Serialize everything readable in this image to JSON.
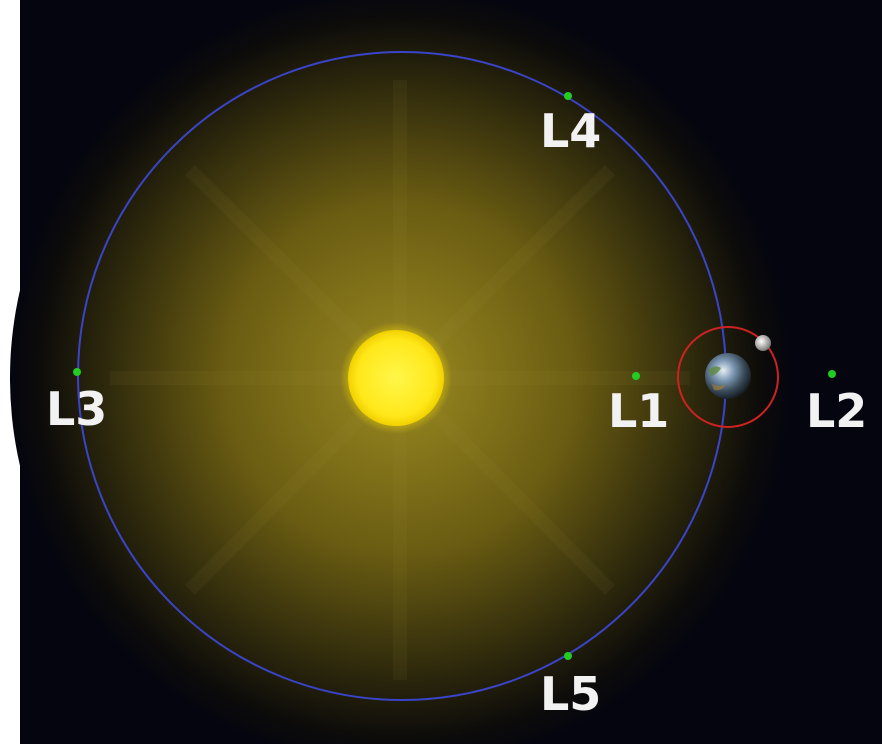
{
  "diagram": {
    "labels": {
      "l1": "L1",
      "l2": "L2",
      "l3": "L3",
      "l4": "L4",
      "l5": "L5"
    },
    "colors": {
      "background": "#05050f",
      "glow": "#7a6a14",
      "sun": "#ffee22",
      "earth_orbit": "#3a44c8",
      "moon_orbit": "#cc2222",
      "lagrange_point": "#22cc22",
      "label": "#f2f2f2"
    }
  }
}
